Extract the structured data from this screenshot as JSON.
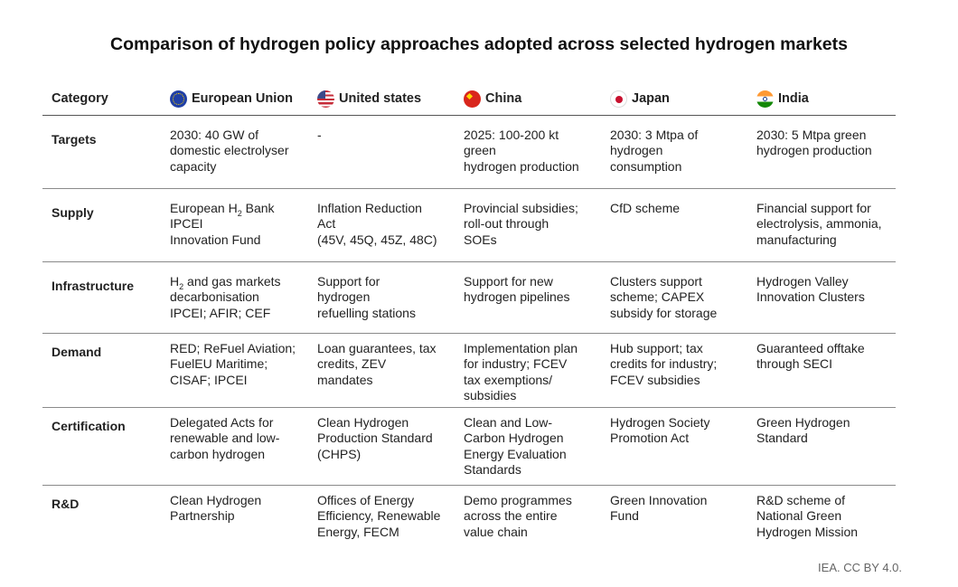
{
  "title": "Comparison of hydrogen policy approaches adopted across selected hydrogen markets",
  "header": {
    "category": "Category",
    "columns": [
      {
        "label": "European Union",
        "flag": "eu-flag-icon"
      },
      {
        "label": "United states",
        "flag": "us-flag-icon"
      },
      {
        "label": "China",
        "flag": "china-flag-icon"
      },
      {
        "label": "Japan",
        "flag": "japan-flag-icon"
      },
      {
        "label": "India",
        "flag": "india-flag-icon"
      }
    ]
  },
  "rows": [
    {
      "category": "Targets",
      "cells": [
        "2030: 40 GW of\ndomestic electrolyser\ncapacity",
        "-",
        "2025: 100-200 kt\ngreen\nhydrogen production",
        "2030: 3 Mtpa of\nhydrogen\nconsumption",
        "2030: 5 Mtpa green\nhydrogen production"
      ]
    },
    {
      "category": "Supply",
      "cells": [
        "European H2 Bank\nIPCEI\nInnovation Fund",
        "Inflation Reduction\nAct\n(45V, 45Q, 45Z, 48C)",
        "Provincial subsidies;\nroll-out through\nSOEs",
        "CfD scheme",
        "Financial support for\nelectrolysis, ammonia,\nmanufacturing"
      ]
    },
    {
      "category": "Infrastructure",
      "cells": [
        "H2 and gas markets\ndecarbonisation\nIPCEI; AFIR; CEF",
        "Support for\nhydrogen\nrefuelling stations",
        "Support for new\nhydrogen pipelines",
        "Clusters support\nscheme; CAPEX\nsubsidy for storage",
        "Hydrogen Valley\nInnovation Clusters"
      ]
    },
    {
      "category": "Demand",
      "cells": [
        "RED; ReFuel Aviation;\nFuelEU Maritime;\nCISAF; IPCEI",
        "Loan guarantees, tax\ncredits, ZEV\nmandates",
        "Implementation plan\nfor industry; FCEV\ntax exemptions/\nsubsidies",
        "Hub support; tax\ncredits for industry;\nFCEV subsidies",
        "Guaranteed offtake\nthrough SECI"
      ]
    },
    {
      "category": "Certification",
      "cells": [
        "Delegated Acts for\nrenewable and low-\ncarbon hydrogen",
        "Clean Hydrogen\nProduction Standard\n(CHPS)",
        "Clean and Low-\nCarbon Hydrogen\nEnergy Evaluation\nStandards",
        "Hydrogen Society\nPromotion Act",
        "Green Hydrogen\nStandard"
      ]
    },
    {
      "category": "R&D",
      "cells": [
        "Clean Hydrogen\nPartnership",
        "Offices of Energy\nEfficiency, Renewable\nEnergy, FECM",
        "Demo programmes\nacross the entire\nvalue chain",
        "Green Innovation\nFund",
        "R&D scheme of\nNational Green\nHydrogen Mission"
      ]
    }
  ],
  "source": "IEA. CC BY 4.0."
}
